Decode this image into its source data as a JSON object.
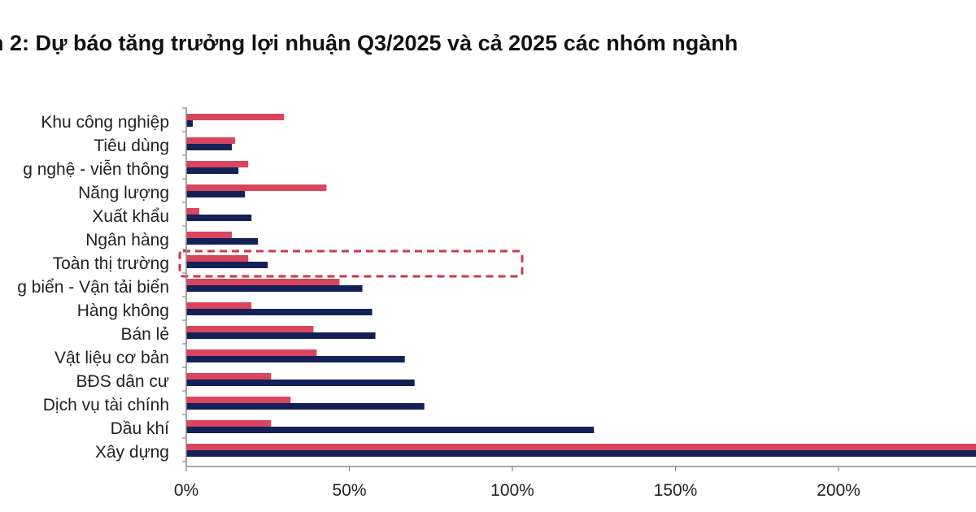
{
  "chart_data": {
    "type": "bar",
    "orientation": "horizontal",
    "title": "n 2: Dự báo tăng trưởng lợi nhuận Q3/2025 và cả 2025 các nhóm ngành",
    "categories": [
      "Khu công nghiệp",
      "Tiêu dùng",
      "g nghệ - viễn thông",
      "Năng lượng",
      "Xuất khẩu",
      "Ngân hàng",
      "Toàn thị trường",
      "g biển - Vận tải biển",
      "Hàng không",
      "Bán lẻ",
      "Vật liệu cơ bản",
      "BĐS dân cư",
      "Dịch vụ tài chính",
      "Dầu khí",
      "Xây dựng"
    ],
    "series": [
      {
        "color": "#d9455c",
        "values": [
          30,
          15,
          19,
          43,
          4,
          14,
          19,
          47,
          20,
          39,
          40,
          26,
          32,
          26,
          250
        ]
      },
      {
        "color": "#142159",
        "values": [
          2,
          14,
          16,
          18,
          20,
          22,
          25,
          54,
          57,
          58,
          67,
          70,
          73,
          125,
          250
        ]
      }
    ],
    "xticks": [
      "0%",
      "50%",
      "100%",
      "150%",
      "200%"
    ],
    "xtick_values": [
      0,
      50,
      100,
      150,
      200
    ],
    "xlim": [
      0,
      243
    ],
    "highlighted_category": "Toàn thị trường",
    "highlight_color": "#c83a52",
    "axis_color": "#8c8c8c"
  }
}
